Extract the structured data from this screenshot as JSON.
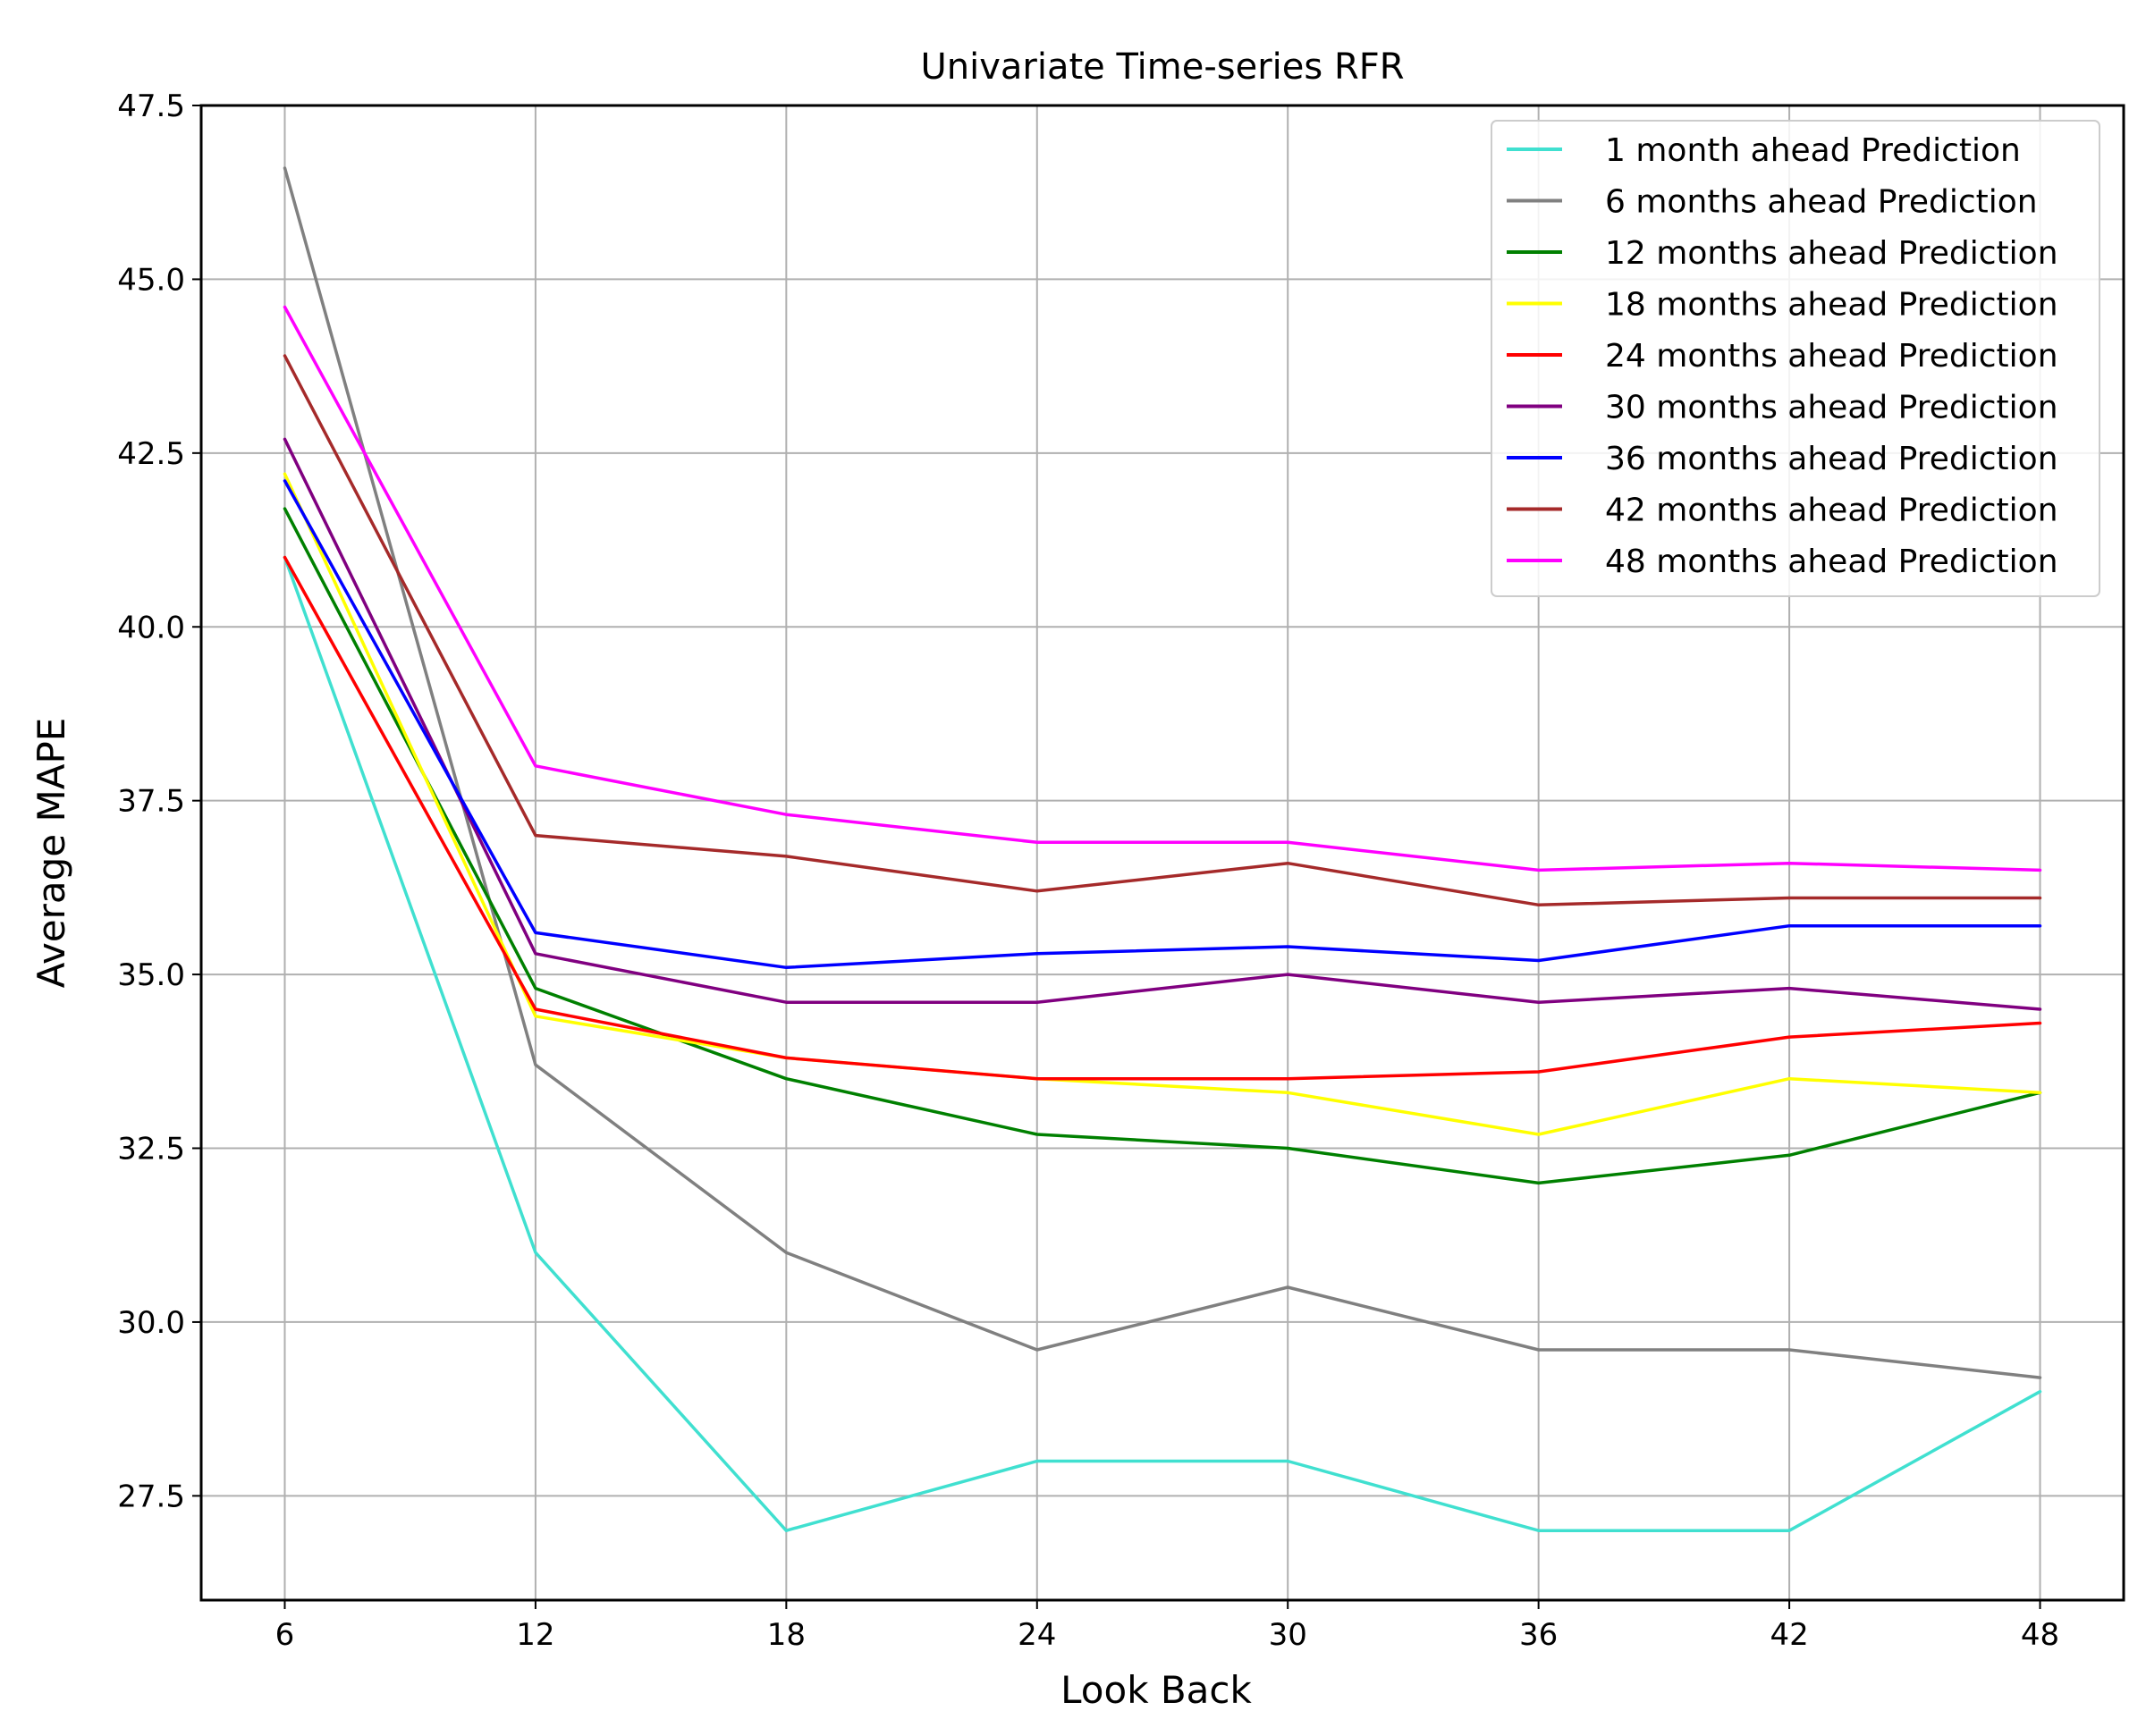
{
  "chart_data": {
    "type": "line",
    "title": "Univariate Time-series RFR",
    "xlabel": "Look Back",
    "ylabel": "Average MAPE",
    "x": [
      6,
      12,
      18,
      24,
      30,
      36,
      42,
      48
    ],
    "xlim": [
      4,
      50
    ],
    "ylim": [
      26.0,
      47.5
    ],
    "xticks": [
      "6",
      "12",
      "18",
      "24",
      "30",
      "36",
      "42",
      "48"
    ],
    "yticks": [
      "27.5",
      "30.0",
      "32.5",
      "35.0",
      "37.5",
      "40.0",
      "42.5",
      "45.0",
      "47.5"
    ],
    "grid": true,
    "legend_position": "top-right",
    "series": [
      {
        "name": "1 month ahead Prediction",
        "color": "#40e0d0",
        "values": [
          41.0,
          31.0,
          27.0,
          28.0,
          28.0,
          27.0,
          27.0,
          29.0
        ]
      },
      {
        "name": "6 months ahead Prediction",
        "color": "#808080",
        "values": [
          46.6,
          33.7,
          31.0,
          29.6,
          30.5,
          29.6,
          29.6,
          29.2
        ]
      },
      {
        "name": "12 months ahead Prediction",
        "color": "#008000",
        "values": [
          41.7,
          34.8,
          33.5,
          32.7,
          32.5,
          32.0,
          32.4,
          33.3
        ]
      },
      {
        "name": "18 months ahead Prediction",
        "color": "#ffff00",
        "values": [
          42.2,
          34.4,
          33.8,
          33.5,
          33.3,
          32.7,
          33.5,
          33.3
        ]
      },
      {
        "name": "24 months ahead Prediction",
        "color": "#ff0000",
        "values": [
          41.0,
          34.5,
          33.8,
          33.5,
          33.5,
          33.6,
          34.1,
          34.3
        ]
      },
      {
        "name": "30 months ahead Prediction",
        "color": "#800080",
        "values": [
          42.7,
          35.3,
          34.6,
          34.6,
          35.0,
          34.6,
          34.8,
          34.5
        ]
      },
      {
        "name": "36 months ahead Prediction",
        "color": "#0000ff",
        "values": [
          42.1,
          35.6,
          35.1,
          35.3,
          35.4,
          35.2,
          35.7,
          35.7
        ]
      },
      {
        "name": "42 months ahead Prediction",
        "color": "#a52a2a",
        "values": [
          43.9,
          37.0,
          36.7,
          36.2,
          36.6,
          36.0,
          36.1,
          36.1
        ]
      },
      {
        "name": "48 months ahead Prediction",
        "color": "#ff00ff",
        "values": [
          44.6,
          38.0,
          37.3,
          36.9,
          36.9,
          36.5,
          36.6,
          36.5
        ]
      }
    ]
  }
}
